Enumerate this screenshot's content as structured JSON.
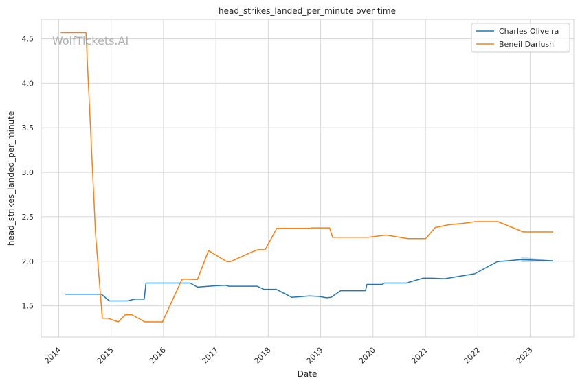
{
  "watermark": "WolfTickets.AI",
  "chart_data": {
    "type": "line",
    "title": "head_strikes_landed_per_minute over time",
    "xlabel": "Date",
    "ylabel": "head_strikes_landed_per_minute",
    "xlim": [
      "2013-09-01",
      "2023-11-01"
    ],
    "ylim": [
      1.15,
      4.72
    ],
    "x_ticks": [
      "2014",
      "2015",
      "2016",
      "2017",
      "2018",
      "2019",
      "2020",
      "2021",
      "2022",
      "2023"
    ],
    "y_ticks": [
      "1.5",
      "2.0",
      "2.5",
      "3.0",
      "3.5",
      "4.0",
      "4.5"
    ],
    "grid": true,
    "legend_position": "top-right",
    "series": [
      {
        "name": "Charles Oliveira",
        "color": "#1f77b4",
        "points": [
          [
            "2014-02-15",
            1.63
          ],
          [
            "2014-10-25",
            1.63
          ],
          [
            "2014-12-20",
            1.555
          ],
          [
            "2015-04-25",
            1.555
          ],
          [
            "2015-06-15",
            1.575
          ],
          [
            "2015-08-20",
            1.575
          ],
          [
            "2015-09-01",
            1.755
          ],
          [
            "2016-07-05",
            1.755
          ],
          [
            "2016-08-25",
            1.71
          ],
          [
            "2017-01-01",
            1.725
          ],
          [
            "2017-03-10",
            1.73
          ],
          [
            "2017-04-01",
            1.72
          ],
          [
            "2017-10-15",
            1.72
          ],
          [
            "2017-12-01",
            1.685
          ],
          [
            "2018-02-25",
            1.685
          ],
          [
            "2018-06-15",
            1.595
          ],
          [
            "2018-10-15",
            1.61
          ],
          [
            "2018-12-25",
            1.605
          ],
          [
            "2019-02-10",
            1.59
          ],
          [
            "2019-03-15",
            1.595
          ],
          [
            "2019-05-20",
            1.67
          ],
          [
            "2019-11-10",
            1.67
          ],
          [
            "2019-11-20",
            1.74
          ],
          [
            "2020-03-05",
            1.74
          ],
          [
            "2020-03-20",
            1.755
          ],
          [
            "2020-08-20",
            1.755
          ],
          [
            "2020-12-15",
            1.81
          ],
          [
            "2021-02-20",
            1.81
          ],
          [
            "2021-05-15",
            1.805
          ],
          [
            "2021-12-10",
            1.86
          ],
          [
            "2022-05-15",
            1.995
          ],
          [
            "2022-10-30",
            2.02
          ],
          [
            "2023-06-10",
            2.005
          ]
        ]
      },
      {
        "name": "Beneil Dariush",
        "color": "#ff7f0e",
        "points": [
          [
            "2014-01-15",
            4.57
          ],
          [
            "2014-06-15",
            4.57
          ],
          [
            "2014-07-10",
            4.57
          ],
          [
            "2014-09-15",
            2.3
          ],
          [
            "2014-11-01",
            1.36
          ],
          [
            "2014-12-10",
            1.36
          ],
          [
            "2015-02-20",
            1.32
          ],
          [
            "2015-04-10",
            1.4
          ],
          [
            "2015-05-25",
            1.4
          ],
          [
            "2015-08-25",
            1.32
          ],
          [
            "2015-12-25",
            1.32
          ],
          [
            "2016-05-10",
            1.8
          ],
          [
            "2016-08-25",
            1.795
          ],
          [
            "2016-11-10",
            2.12
          ],
          [
            "2017-02-10",
            2.03
          ],
          [
            "2017-03-20",
            1.995
          ],
          [
            "2017-04-10",
            1.995
          ],
          [
            "2017-09-10",
            2.105
          ],
          [
            "2017-10-20",
            2.13
          ],
          [
            "2017-12-10",
            2.13
          ],
          [
            "2018-03-01",
            2.37
          ],
          [
            "2018-10-15",
            2.37
          ],
          [
            "2018-11-01",
            2.375
          ],
          [
            "2019-03-05",
            2.375
          ],
          [
            "2019-03-25",
            2.27
          ],
          [
            "2019-12-01",
            2.27
          ],
          [
            "2020-02-15",
            2.285
          ],
          [
            "2020-04-01",
            2.295
          ],
          [
            "2020-09-01",
            2.255
          ],
          [
            "2021-01-01",
            2.255
          ],
          [
            "2021-03-10",
            2.38
          ],
          [
            "2021-06-10",
            2.41
          ],
          [
            "2021-09-15",
            2.425
          ],
          [
            "2021-12-15",
            2.445
          ],
          [
            "2022-05-20",
            2.445
          ],
          [
            "2022-11-15",
            2.33
          ],
          [
            "2023-06-10",
            2.33
          ]
        ]
      }
    ],
    "confidence_band": {
      "series": "Charles Oliveira",
      "x": [
        "2022-10-30",
        "2023-06-10"
      ],
      "lower": [
        1.99,
        2.0
      ],
      "upper": [
        2.05,
        2.01
      ]
    }
  }
}
